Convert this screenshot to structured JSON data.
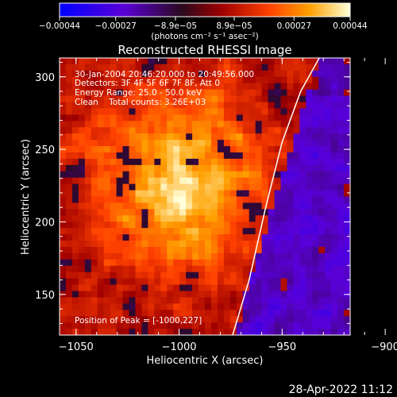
{
  "chart_data": {
    "type": "heatmap",
    "title": "Reconstructed RHESSI Image",
    "xlabel": "Heliocentric X (arcsec)",
    "ylabel": "Heliocentric Y (arcsec)",
    "xlim": [
      -1058,
      -917
    ],
    "ylim": [
      122,
      313
    ],
    "x_ticks": [
      -1050,
      -1000,
      -950,
      -900
    ],
    "x_tick_labels": [
      "−1050",
      "−1000",
      "−950",
      "−900"
    ],
    "y_ticks": [
      150,
      200,
      250,
      300
    ],
    "y_tick_labels": [
      "150",
      "200",
      "250",
      "300"
    ],
    "colorbar": {
      "min": -0.00044,
      "max": 0.00044,
      "ticks": [
        -0.00044,
        -0.00027,
        -8.9e-05,
        8.9e-05,
        0.00027,
        0.00044
      ],
      "tick_labels": [
        "−0.00044",
        "−0.00027",
        "−8.9e−05",
        "8.9e−05",
        "0.00027",
        "0.00044"
      ],
      "units": "(photons cm⁻² s⁻¹ asec⁻²)",
      "colors": [
        "#0000ff",
        "#5a00d8",
        "#2a0a1e",
        "#a00000",
        "#ff4000",
        "#ffa000",
        "#ffffd8"
      ]
    },
    "annotations": [
      "30-Jan-2004 20:46:20.000 to 20:49:56.000",
      "Detectors: 3F 4F 5F 6F 7F 8F, Att 0",
      "Energy Range: 25.0 - 50.0 keV",
      "Clean    Total counts: 3.26E+03"
    ],
    "peak_label": "Position of Peak = [-1000,227]",
    "peak_position": [
      -1000,
      227
    ],
    "limb_line": [
      [
        -974,
        122
      ],
      [
        -966,
        160
      ],
      [
        -958,
        210
      ],
      [
        -950,
        255
      ],
      [
        -941,
        290
      ],
      [
        -932,
        313
      ]
    ],
    "timestamp": "28-Apr-2022 11:12"
  },
  "colors": {
    "background": "#000000",
    "foreground": "#ffffff"
  }
}
